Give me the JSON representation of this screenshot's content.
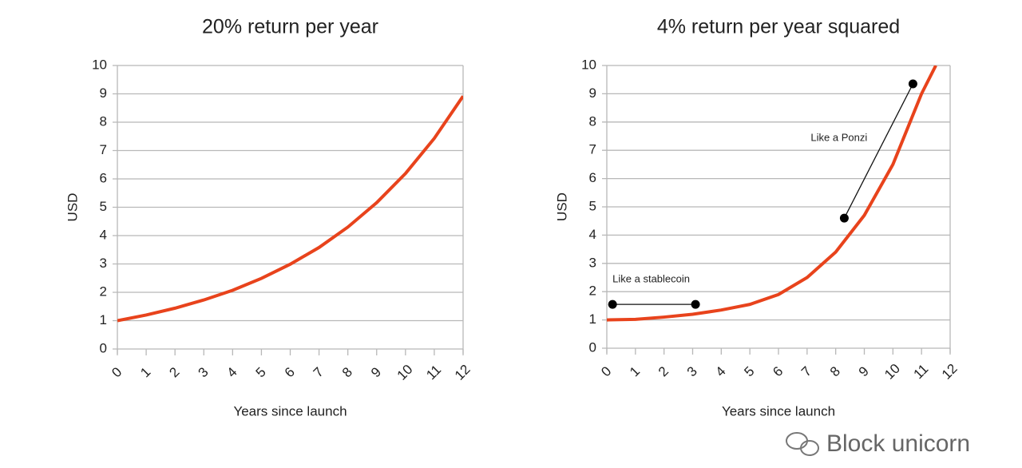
{
  "chart_data": [
    {
      "type": "line",
      "title": "20% return per year",
      "x_label": "Years since launch",
      "y_label": "USD",
      "x": [
        0,
        1,
        2,
        3,
        4,
        5,
        6,
        7,
        8,
        9,
        10,
        11,
        12
      ],
      "series": [
        {
          "name": "USD",
          "color": "#e8431c",
          "values": [
            1,
            1.2,
            1.44,
            1.73,
            2.07,
            2.49,
            2.99,
            3.58,
            4.3,
            5.16,
            6.19,
            7.43,
            8.92
          ]
        }
      ],
      "xlim": [
        0,
        12
      ],
      "ylim": [
        0,
        10
      ],
      "xticks": [
        0,
        1,
        2,
        3,
        4,
        5,
        6,
        7,
        8,
        9,
        10,
        11,
        12
      ],
      "yticks": [
        0,
        1,
        2,
        3,
        4,
        5,
        6,
        7,
        8,
        9,
        10
      ],
      "grid": true
    },
    {
      "type": "line",
      "title": "4% return per year squared",
      "x_label": "Years since launch",
      "y_label": "USD",
      "x": [
        0,
        1,
        2,
        3,
        4,
        5,
        6,
        7,
        8,
        9,
        10,
        11,
        11.5
      ],
      "series": [
        {
          "name": "USD",
          "color": "#e8431c",
          "values": [
            1,
            1.02,
            1.1,
            1.2,
            1.35,
            1.55,
            1.9,
            2.5,
            3.4,
            4.7,
            6.5,
            9,
            10
          ]
        }
      ],
      "xlim": [
        0,
        12
      ],
      "ylim": [
        0,
        10
      ],
      "xticks": [
        0,
        1,
        2,
        3,
        4,
        5,
        6,
        7,
        8,
        9,
        10,
        11,
        12
      ],
      "yticks": [
        0,
        1,
        2,
        3,
        4,
        5,
        6,
        7,
        8,
        9,
        10
      ],
      "grid": true,
      "annotations": [
        {
          "text": "Like a stablecoin",
          "x": [
            0.2,
            3.1
          ],
          "y": [
            1.55,
            1.55
          ]
        },
        {
          "text": "Like a Ponzi",
          "x": [
            8.3,
            10.7
          ],
          "y": [
            4.6,
            9.35
          ]
        }
      ]
    }
  ],
  "watermark": "Block unicorn"
}
